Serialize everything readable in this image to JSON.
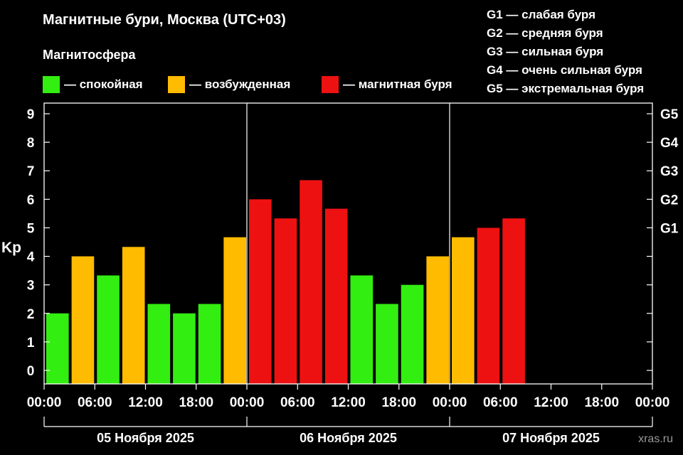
{
  "header": {
    "title": "Магнитные бури, Москва (UTC+03)",
    "legend_title": "Магнитосфера"
  },
  "legend": [
    {
      "label": "— спокойная",
      "color": "#33ee11"
    },
    {
      "label": "— возбужденная",
      "color": "#ffbb00"
    },
    {
      "label": "— магнитная буря",
      "color": "#ee1111"
    }
  ],
  "g_scale": [
    "G1 — слабая буря",
    "G2 — средняя буря",
    "G3 — сильная буря",
    "G4 — очень сильная буря",
    "G5 — экстремальная буря"
  ],
  "watermark": "xras.ru",
  "chart_data": {
    "type": "bar",
    "ylabel": "Kp",
    "ylim": [
      0,
      9
    ],
    "yticks": [
      "0",
      "1",
      "2",
      "3",
      "4",
      "5",
      "6",
      "7",
      "8",
      "9"
    ],
    "right_ticks": [
      {
        "kp": 5,
        "label": "G1"
      },
      {
        "kp": 6,
        "label": "G2"
      },
      {
        "kp": 7,
        "label": "G3"
      },
      {
        "kp": 8,
        "label": "G4"
      },
      {
        "kp": 9,
        "label": "G5"
      }
    ],
    "xticks": [
      "00:00",
      "06:00",
      "12:00",
      "18:00",
      "00:00",
      "06:00",
      "12:00",
      "18:00",
      "00:00",
      "06:00",
      "12:00",
      "18:00",
      "00:00"
    ],
    "days": [
      "05 Ноября 2025",
      "06 Ноября 2025",
      "07 Ноября 2025"
    ],
    "slots_total": 24,
    "values": [
      2.0,
      4.0,
      3.33,
      4.33,
      2.33,
      2.0,
      2.33,
      4.67,
      6.0,
      5.33,
      6.67,
      5.67,
      3.33,
      2.33,
      3.0,
      4.0,
      4.67,
      5.0,
      5.33
    ],
    "colors": {
      "quiet": "#33ee11",
      "active": "#ffbb00",
      "storm": "#ee1111"
    }
  }
}
